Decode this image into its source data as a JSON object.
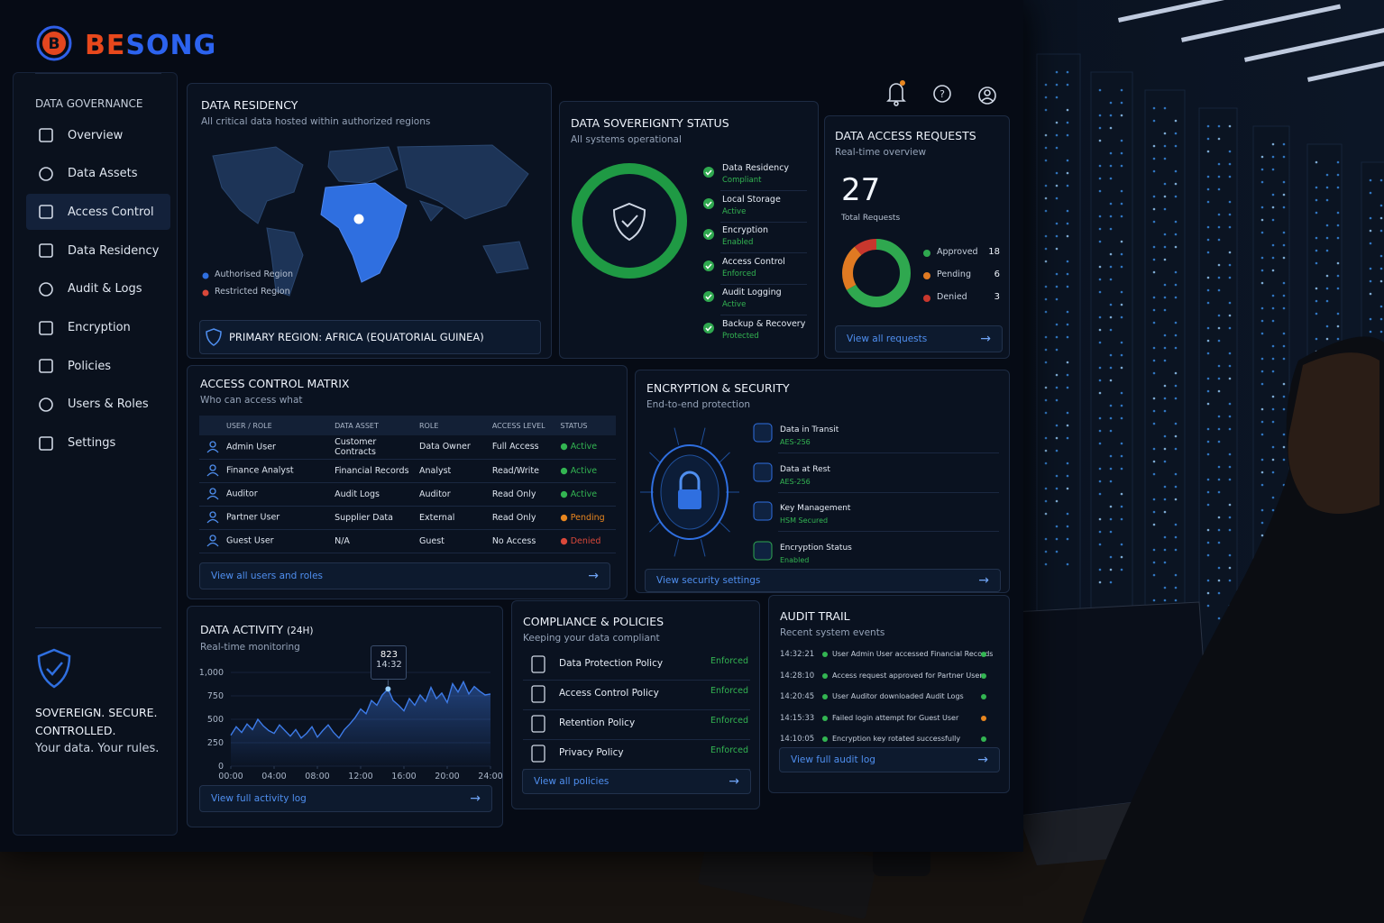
{
  "brand": "BESONG",
  "sidebar": {
    "section": "DATA GOVERNANCE",
    "nav": [
      "Overview",
      "Data Assets",
      "Access Control",
      "Data Residency",
      "Audit & Logs",
      "Encryption",
      "Policies",
      "Users & Roles",
      "Settings"
    ],
    "tagline": "SOVEREIGN. SECURE. CONTROLLED.",
    "motto": "Your data. Your rules."
  },
  "data_residency": {
    "title": "DATA RESIDENCY",
    "subtitle": "All critical data hosted within authorized regions",
    "legend": [
      {
        "name": "Authorised Region",
        "color": "#2f6fe0"
      },
      {
        "name": "Restricted Region",
        "color": "#d9483a"
      }
    ],
    "primary_region": "PRIMARY REGION: AFRICA (EQUATORIAL GUINEA)"
  },
  "sovereignty": {
    "title": "DATA SOVEREIGNTY STATUS",
    "subtitle": "All systems operational",
    "items": [
      {
        "label": "Data Residency",
        "status": "Compliant"
      },
      {
        "label": "Local Storage",
        "status": "Active"
      },
      {
        "label": "Encryption",
        "status": "Enabled"
      },
      {
        "label": "Access Control",
        "status": "Enforced"
      },
      {
        "label": "Audit Logging",
        "status": "Active"
      },
      {
        "label": "Backup & Recovery",
        "status": "Protected"
      }
    ]
  },
  "access_requests": {
    "title": "DATA ACCESS REQUESTS",
    "subtitle": "Real-time overview",
    "total": 27,
    "total_label": "Total Requests",
    "breakdown": [
      {
        "name": "Approved",
        "value": 18,
        "color": "#2fa84f"
      },
      {
        "name": "Pending",
        "value": 6,
        "color": "#e07a22"
      },
      {
        "name": "Denied",
        "value": 3,
        "color": "#c8372d"
      }
    ],
    "link": "View all requests"
  },
  "access_matrix": {
    "title": "ACCESS CONTROL MATRIX",
    "subtitle": "Who can access what",
    "columns": [
      "USER / ROLE",
      "DATA ASSET",
      "ROLE",
      "ACCESS LEVEL",
      "STATUS"
    ],
    "rows": [
      [
        "Admin User",
        "Customer Contracts",
        "Data Owner",
        "Full Access",
        "Active"
      ],
      [
        "Finance Analyst",
        "Financial Records",
        "Analyst",
        "Read/Write",
        "Active"
      ],
      [
        "Auditor",
        "Audit Logs",
        "Auditor",
        "Read Only",
        "Active"
      ],
      [
        "Partner User",
        "Supplier Data",
        "External",
        "Read Only",
        "Pending"
      ],
      [
        "Guest User",
        "N/A",
        "Guest",
        "No Access",
        "Denied"
      ]
    ],
    "status_colors": [
      "#33b552",
      "#33b552",
      "#33b552",
      "#e8861f",
      "#d9483a"
    ],
    "link": "View all users and roles"
  },
  "encryption": {
    "title": "ENCRYPTION & SECURITY",
    "subtitle": "End-to-end protection",
    "items": [
      {
        "label": "Data in Transit",
        "status": "AES-256"
      },
      {
        "label": "Data at Rest",
        "status": "AES-256"
      },
      {
        "label": "Key Management",
        "status": "HSM Secured"
      },
      {
        "label": "Encryption Status",
        "status": "Enabled"
      }
    ],
    "link": "View security settings"
  },
  "data_activity": {
    "type": "line",
    "title": "DATA ACTIVITY",
    "title_suffix": "(24H)",
    "subtitle": "Real-time monitoring",
    "x": [
      0,
      0.5,
      1,
      1.5,
      2,
      2.5,
      3,
      3.5,
      4,
      4.5,
      5,
      5.5,
      6,
      6.5,
      7,
      7.5,
      8,
      8.5,
      9,
      9.5,
      10,
      10.5,
      11,
      11.5,
      12,
      12.5,
      13,
      13.5,
      14,
      14.5333,
      15,
      15.5,
      16,
      16.5,
      17,
      17.5,
      18,
      18.5,
      19,
      19.5,
      20,
      20.5,
      21,
      21.5,
      22,
      22.5,
      23,
      23.5,
      24
    ],
    "values": [
      330,
      420,
      360,
      450,
      390,
      500,
      430,
      380,
      350,
      440,
      380,
      320,
      390,
      300,
      350,
      420,
      310,
      380,
      440,
      360,
      300,
      390,
      450,
      520,
      610,
      560,
      700,
      650,
      760,
      823,
      700,
      650,
      590,
      720,
      650,
      760,
      690,
      840,
      720,
      780,
      680,
      880,
      790,
      900,
      770,
      850,
      800,
      760,
      770
    ],
    "color": "#3d7be8",
    "xlim": [
      0,
      24
    ],
    "ylim": [
      0,
      1000
    ],
    "xticks": [
      {
        "value": 0,
        "label": "00:00"
      },
      {
        "value": 4,
        "label": "04:00"
      },
      {
        "value": 8,
        "label": "08:00"
      },
      {
        "value": 12,
        "label": "12:00"
      },
      {
        "value": 16,
        "label": "16:00"
      },
      {
        "value": 20,
        "label": "20:00"
      },
      {
        "value": 24,
        "label": "24:00"
      }
    ],
    "yticks": [
      0,
      250,
      500,
      750,
      {
        "value": 1000,
        "label": "1,000"
      }
    ],
    "tooltip": {
      "x": 14.5333,
      "value": 823,
      "label": "14:32"
    },
    "link": "View full activity log"
  },
  "compliance": {
    "title": "COMPLIANCE & POLICIES",
    "subtitle": "Keeping your data compliant",
    "policies": [
      {
        "name": "Data Protection Policy",
        "status": "Enforced"
      },
      {
        "name": "Access Control Policy",
        "status": "Enforced"
      },
      {
        "name": "Retention Policy",
        "status": "Enforced"
      },
      {
        "name": "Privacy Policy",
        "status": "Enforced"
      }
    ],
    "link": "View all policies"
  },
  "audit_trail": {
    "title": "AUDIT TRAIL",
    "subtitle": "Recent system events",
    "events": [
      {
        "time": "14:32:21",
        "text": "User Admin User accessed Financial Records",
        "color": "#33b552"
      },
      {
        "time": "14:28:10",
        "text": "Access request approved for Partner User",
        "color": "#33b552"
      },
      {
        "time": "14:20:45",
        "text": "User Auditor downloaded Audit Logs",
        "color": "#33b552"
      },
      {
        "time": "14:15:33",
        "text": "Failed login attempt for Guest User",
        "color": "#e8861f"
      },
      {
        "time": "14:10:05",
        "text": "Encryption key rotated successfully",
        "color": "#33b552"
      }
    ],
    "link": "View full audit log"
  }
}
